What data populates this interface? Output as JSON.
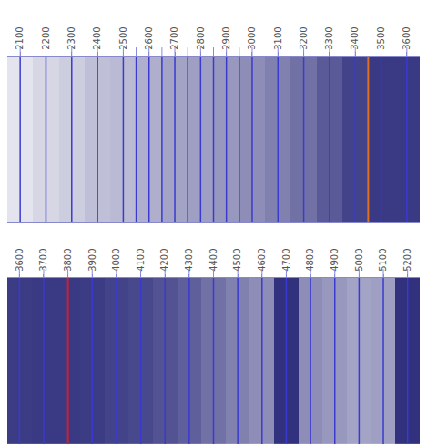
{
  "chart_data": [
    {
      "type": "heatmap",
      "color": "#1a1a70",
      "zlim": [
        0,
        1
      ],
      "grid": false,
      "xlim": [
        2050,
        3650
      ],
      "xticks": [
        2100,
        2200,
        2300,
        2400,
        2500,
        2600,
        2700,
        2800,
        2900,
        3000,
        3100,
        3200,
        3300,
        3400,
        3500,
        3600
      ],
      "bins": [
        2050,
        2150,
        2250,
        2350,
        2450,
        2550,
        2650,
        2750,
        2850,
        2950,
        3050,
        3150,
        3250,
        3350,
        3450,
        3550,
        3650
      ],
      "values": [
        0.12,
        0.18,
        0.22,
        0.28,
        0.3,
        0.35,
        0.4,
        0.42,
        0.45,
        0.5,
        0.55,
        0.62,
        0.72,
        0.82,
        0.86,
        0.86
      ],
      "lines": [
        2100,
        2200,
        2300,
        2400,
        2500,
        2550,
        2600,
        2650,
        2700,
        2750,
        2800,
        2850,
        2900,
        2950,
        3000,
        3100,
        3200,
        3300,
        3400,
        3500,
        3600
      ],
      "highlight": {
        "x": 3450,
        "color": "#e07020"
      }
    },
    {
      "type": "heatmap",
      "color": "#1a1a70",
      "zlim": [
        0,
        1
      ],
      "grid": false,
      "xlim": [
        3550,
        5250
      ],
      "xticks": [
        3600,
        3700,
        3800,
        3900,
        4000,
        4100,
        4200,
        4300,
        4400,
        4500,
        4600,
        4700,
        4800,
        4900,
        5000,
        5100,
        5200
      ],
      "bins": [
        3550,
        3650,
        3750,
        3850,
        3950,
        4050,
        4150,
        4250,
        4350,
        4450,
        4550,
        4650,
        4750,
        4850,
        4950,
        5050,
        5150,
        5250
      ],
      "values": [
        0.85,
        0.86,
        0.86,
        0.85,
        0.82,
        0.8,
        0.75,
        0.7,
        0.62,
        0.55,
        0.5,
        0.9,
        0.5,
        0.45,
        0.4,
        0.42,
        0.9
      ],
      "lines": [
        3600,
        3700,
        3800,
        3900,
        4000,
        4100,
        4200,
        4300,
        4400,
        4500,
        4600,
        4700,
        4800,
        4900,
        5000,
        5100,
        5200
      ],
      "highlight": {
        "x": 3800,
        "color": "#d02020",
        "marker": "diamond"
      }
    }
  ]
}
